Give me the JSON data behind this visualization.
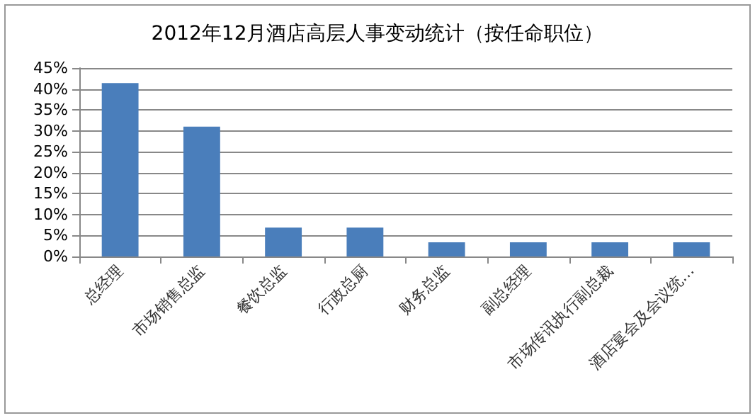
{
  "chart_data": {
    "type": "bar",
    "title": "2012年12月酒店高层人事变动统计（按任命职位）",
    "categories": [
      "总经理",
      "市场销售总监",
      "餐饮总监",
      "行政总厨",
      "财务总监",
      "副总经理",
      "市场传讯执行副总裁",
      "酒店宴会及会议统…"
    ],
    "values": [
      41.4,
      31,
      6.9,
      6.9,
      3.4,
      3.4,
      3.4,
      3.4
    ],
    "color": "#4a7ebb",
    "ylim": [
      0,
      45
    ],
    "yticks": [
      {
        "value": 0,
        "label": "0%"
      },
      {
        "value": 5,
        "label": "5%"
      },
      {
        "value": 10,
        "label": "10%"
      },
      {
        "value": 15,
        "label": "15%"
      },
      {
        "value": 20,
        "label": "20%"
      },
      {
        "value": 25,
        "label": "25%"
      },
      {
        "value": 30,
        "label": "30%"
      },
      {
        "value": 35,
        "label": "35%"
      },
      {
        "value": 40,
        "label": "40%"
      },
      {
        "value": 45,
        "label": "45%"
      }
    ],
    "grid": "y"
  }
}
